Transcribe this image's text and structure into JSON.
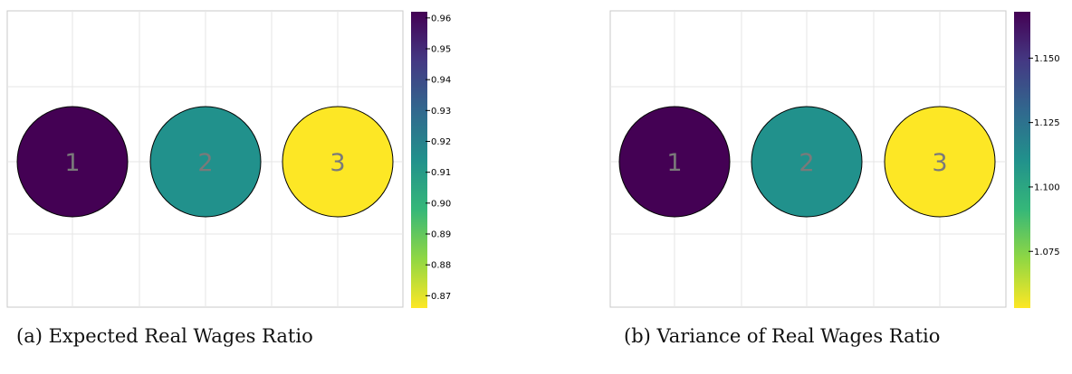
{
  "chart_data": [
    {
      "type": "scatter",
      "caption": "(a) Expected Real Wages Ratio",
      "title": "",
      "xlabel": "",
      "ylabel": "",
      "grid": true,
      "points": [
        {
          "label": "1",
          "color": "#440154"
        },
        {
          "label": "2",
          "color": "#21918c"
        },
        {
          "label": "3",
          "color": "#fde725"
        }
      ],
      "colorbar": {
        "colormap": "viridis",
        "reversed": true,
        "range": [
          0.866,
          0.962
        ],
        "ticks": [
          0.96,
          0.95,
          0.94,
          0.93,
          0.92,
          0.91,
          0.9,
          0.89,
          0.88,
          0.87
        ],
        "tick_labels": [
          "0.96",
          "0.95",
          "0.94",
          "0.93",
          "0.92",
          "0.91",
          "0.90",
          "0.89",
          "0.88",
          "0.87"
        ]
      }
    },
    {
      "type": "scatter",
      "caption": "(b) Variance of Real Wages Ratio",
      "title": "",
      "xlabel": "",
      "ylabel": "",
      "grid": true,
      "points": [
        {
          "label": "1",
          "color": "#440154"
        },
        {
          "label": "2",
          "color": "#21918c"
        },
        {
          "label": "3",
          "color": "#fde725"
        }
      ],
      "colorbar": {
        "colormap": "viridis",
        "reversed": true,
        "range": [
          1.053,
          1.168
        ],
        "ticks": [
          1.15,
          1.125,
          1.1,
          1.075
        ],
        "tick_labels": [
          "1.150",
          "1.125",
          "1.100",
          "1.075"
        ]
      }
    }
  ],
  "colors": {
    "grid": "#e6e6e6",
    "frame": "#c8c8c8",
    "node_label": "#7a7a7a",
    "viridis_stops": [
      "#fde725",
      "#90d743",
      "#35b779",
      "#21918c",
      "#31688e",
      "#443983",
      "#440154"
    ]
  }
}
